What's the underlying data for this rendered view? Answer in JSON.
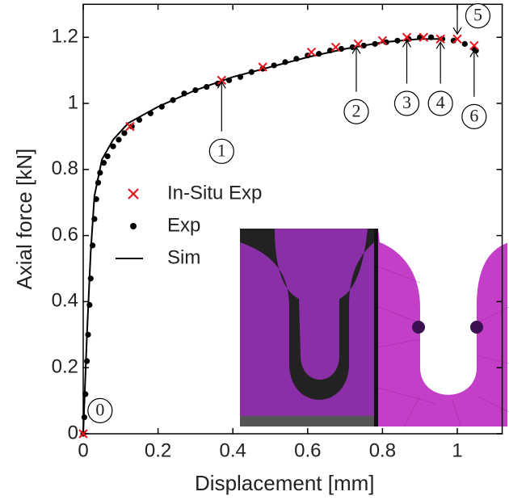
{
  "chart_data": {
    "type": "scatter",
    "xlabel": "Displacement [mm]",
    "ylabel": "Axial force [kN]",
    "xlim": [
      0,
      1.12
    ],
    "ylim": [
      0,
      1.3
    ],
    "xticks": [
      0,
      0.2,
      0.4,
      0.6,
      0.8,
      1
    ],
    "yticks": [
      0,
      0.2,
      0.4,
      0.6,
      0.8,
      1,
      1.2
    ],
    "legend": "left",
    "annotations": [
      "0",
      "1",
      "2",
      "3",
      "4",
      "5",
      "6"
    ],
    "series": [
      {
        "name": "In-Situ Exp",
        "color": "#e8141c",
        "marker": "x",
        "x": [
          0,
          0.125,
          0.37,
          0.48,
          0.61,
          0.675,
          0.735,
          0.8,
          0.865,
          0.91,
          0.955,
          1.0,
          1.045
        ],
        "values": [
          0,
          0.93,
          1.07,
          1.11,
          1.155,
          1.17,
          1.18,
          1.19,
          1.2,
          1.2,
          1.195,
          1.195,
          1.175
        ]
      },
      {
        "name": "Exp",
        "color": "#000000",
        "marker": "dot",
        "x": [
          0,
          0.003,
          0.006,
          0.01,
          0.013,
          0.017,
          0.02,
          0.025,
          0.03,
          0.035,
          0.04,
          0.045,
          0.055,
          0.065,
          0.08,
          0.095,
          0.11,
          0.13,
          0.15,
          0.18,
          0.21,
          0.24,
          0.27,
          0.3,
          0.33,
          0.36,
          0.39,
          0.42,
          0.45,
          0.48,
          0.51,
          0.54,
          0.57,
          0.6,
          0.63,
          0.66,
          0.69,
          0.72,
          0.75,
          0.78,
          0.81,
          0.84,
          0.87,
          0.9,
          0.93,
          0.96,
          0.99,
          1.02,
          1.045,
          1.05
        ],
        "values": [
          0,
          0.05,
          0.12,
          0.22,
          0.3,
          0.39,
          0.47,
          0.57,
          0.65,
          0.71,
          0.76,
          0.79,
          0.82,
          0.84,
          0.87,
          0.89,
          0.91,
          0.93,
          0.95,
          0.97,
          0.99,
          1.01,
          1.03,
          1.04,
          1.05,
          1.06,
          1.07,
          1.08,
          1.095,
          1.105,
          1.115,
          1.125,
          1.135,
          1.145,
          1.15,
          1.16,
          1.165,
          1.17,
          1.175,
          1.18,
          1.185,
          1.19,
          1.195,
          1.2,
          1.2,
          1.195,
          1.19,
          1.18,
          1.165,
          1.16
        ]
      },
      {
        "name": "Sim",
        "color": "#000000",
        "marker": "line",
        "x": [
          0,
          0.01,
          0.02,
          0.03,
          0.05,
          0.08,
          0.12,
          0.2,
          0.3,
          0.4,
          0.5,
          0.6,
          0.7,
          0.8,
          0.9,
          0.96
        ],
        "values": [
          0,
          0.3,
          0.55,
          0.72,
          0.83,
          0.89,
          0.94,
          0.99,
          1.04,
          1.08,
          1.11,
          1.14,
          1.165,
          1.185,
          1.195,
          1.195
        ]
      }
    ]
  }
}
